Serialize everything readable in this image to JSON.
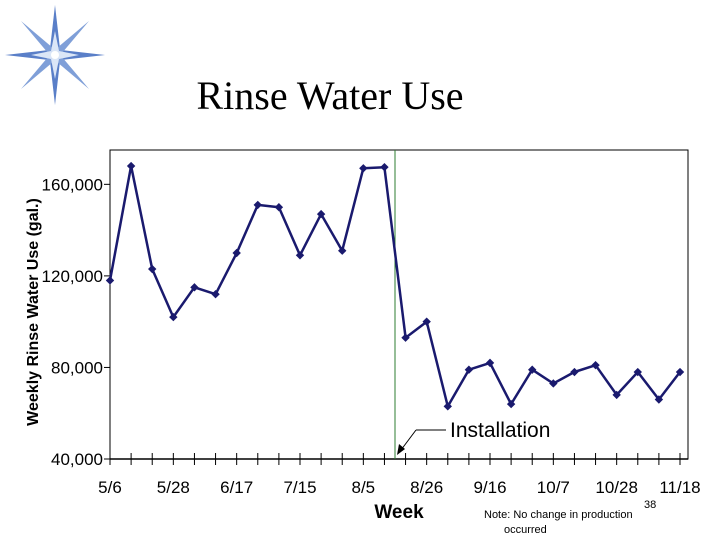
{
  "slide": {
    "title": "Rinse Water Use",
    "page_number": "38",
    "note_line1": "Note:  No change in production",
    "note_line2": "occurred"
  },
  "colors": {
    "series": "#1a1a6e",
    "marker": "#1a1a6e",
    "installation_line": "#2e7d32",
    "logo_blue": "#5a7fc8",
    "logo_light": "#dbe6f7"
  },
  "logo": {
    "icon": "compass-star-icon"
  },
  "chart_data": {
    "type": "line",
    "title": "Rinse Water Use",
    "xlabel": "Week",
    "ylabel": "Weekly Rinse Water Use (gal.)",
    "ylim": [
      40000,
      175000
    ],
    "yticks": [
      40000,
      80000,
      120000,
      160000
    ],
    "ytick_labels": [
      "40,000",
      "80,000",
      "120,000",
      "160,000"
    ],
    "xtick_labels": [
      "5/6",
      "5/28",
      "6/17",
      "7/15",
      "8/5",
      "8/26",
      "9/16",
      "10/7",
      "10/28",
      "11/18"
    ],
    "xtick_positions": [
      0,
      3,
      6,
      9,
      12,
      15,
      18,
      21,
      24,
      27
    ],
    "x_count": 28,
    "grid": false,
    "series": [
      {
        "values": [
          118000,
          168000,
          123000,
          102000,
          115000,
          112000,
          130000,
          151000,
          150000,
          129000,
          147000,
          131000,
          167000,
          167500,
          93000,
          100000,
          63000,
          79000,
          82000,
          64000,
          79000,
          73000,
          78000,
          81000,
          68000,
          78000,
          66000,
          78000
        ]
      }
    ],
    "annotations": [
      {
        "text": "Installation",
        "x_index": 13.5
      }
    ]
  }
}
